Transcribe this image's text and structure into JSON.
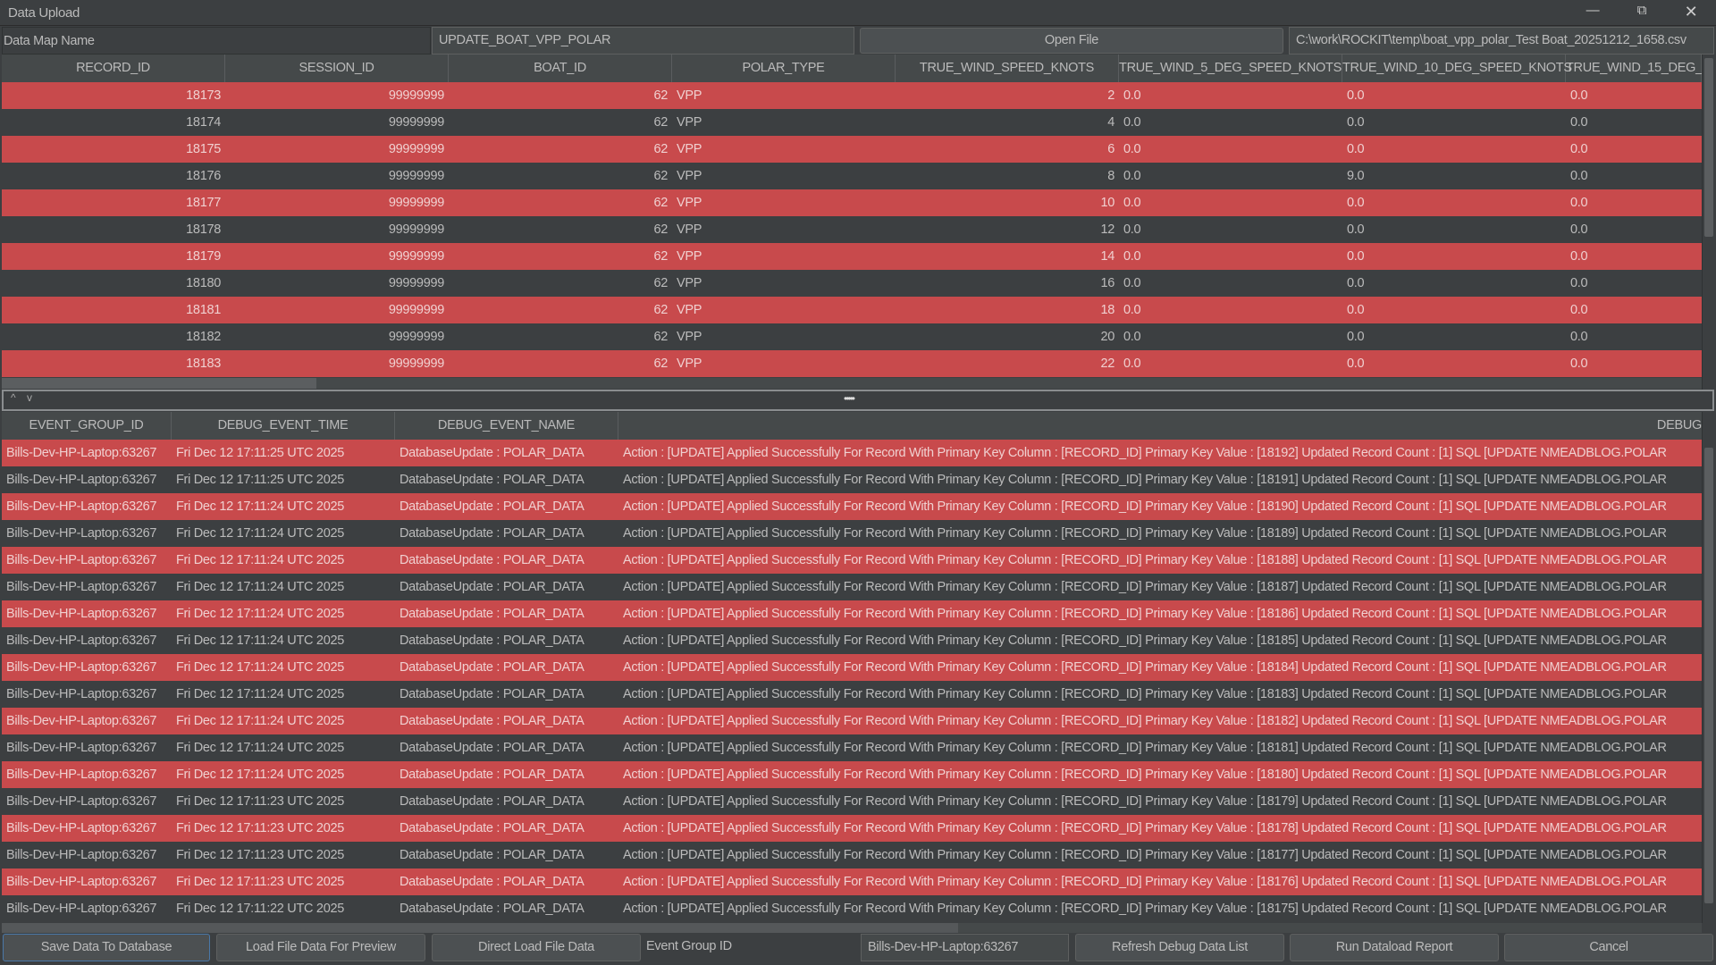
{
  "window": {
    "title": "Data Upload",
    "minimize_icon": "minimize-icon",
    "restore_icon": "restore-icon",
    "close_icon": "close-icon"
  },
  "colors": {
    "error_row": "#c84a4c",
    "normal_row": "#3c3f41",
    "background": "#3c3f41"
  },
  "data_map": {
    "label": "Data Map Name",
    "value": "UPDATE_BOAT_VPP_POLAR",
    "open_file_label": "Open File",
    "file_path": "C:\\work\\ROCKIT\\temp\\boat_vpp_polar_Test Boat_20251212_1658.csv"
  },
  "data_table": {
    "columns": [
      "RECORD_ID",
      "SESSION_ID",
      "BOAT_ID",
      "POLAR_TYPE",
      "TRUE_WIND_SPEED_KNOTS",
      "TRUE_WIND_5_DEG_SPEED_KNOTS",
      "TRUE_WIND_10_DEG_SPEED_KNOTS",
      "TRUE_WIND_15_DEG_"
    ],
    "rows": [
      [
        "18173",
        "99999999",
        "62",
        "VPP",
        "2",
        "0.0",
        "0.0",
        "0.0"
      ],
      [
        "18174",
        "99999999",
        "62",
        "VPP",
        "4",
        "0.0",
        "0.0",
        "0.0"
      ],
      [
        "18175",
        "99999999",
        "62",
        "VPP",
        "6",
        "0.0",
        "0.0",
        "0.0"
      ],
      [
        "18176",
        "99999999",
        "62",
        "VPP",
        "8",
        "0.0",
        "9.0",
        "0.0"
      ],
      [
        "18177",
        "99999999",
        "62",
        "VPP",
        "10",
        "0.0",
        "0.0",
        "0.0"
      ],
      [
        "18178",
        "99999999",
        "62",
        "VPP",
        "12",
        "0.0",
        "0.0",
        "0.0"
      ],
      [
        "18179",
        "99999999",
        "62",
        "VPP",
        "14",
        "0.0",
        "0.0",
        "0.0"
      ],
      [
        "18180",
        "99999999",
        "62",
        "VPP",
        "16",
        "0.0",
        "0.0",
        "0.0"
      ],
      [
        "18181",
        "99999999",
        "62",
        "VPP",
        "18",
        "0.0",
        "0.0",
        "0.0"
      ],
      [
        "18182",
        "99999999",
        "62",
        "VPP",
        "20",
        "0.0",
        "0.0",
        "0.0"
      ],
      [
        "18183",
        "99999999",
        "62",
        "VPP",
        "22",
        "0.0",
        "0.0",
        "0.0"
      ]
    ]
  },
  "splitter": {
    "up_icon": "^",
    "down_icon": "v",
    "grip": "•••••"
  },
  "debug_table": {
    "columns": [
      "EVENT_GROUP_ID",
      "DEBUG_EVENT_TIME",
      "DEBUG_EVENT_NAME",
      "DEBUG"
    ],
    "rows": [
      [
        "Bills-Dev-HP-Laptop:63267",
        "Fri Dec 12 17:11:25 UTC 2025",
        "DatabaseUpdate : POLAR_DATA",
        "Action : [UPDATE] Applied Successfully  For Record With Primary Key Column : [RECORD_ID] Primary Key Value : [18192] Updated Record Count : [1] SQL [UPDATE NMEADBLOG.POLAR"
      ],
      [
        "Bills-Dev-HP-Laptop:63267",
        "Fri Dec 12 17:11:25 UTC 2025",
        "DatabaseUpdate : POLAR_DATA",
        "Action : [UPDATE] Applied Successfully  For Record With Primary Key Column : [RECORD_ID] Primary Key Value : [18191] Updated Record Count : [1] SQL [UPDATE NMEADBLOG.POLAR"
      ],
      [
        "Bills-Dev-HP-Laptop:63267",
        "Fri Dec 12 17:11:24 UTC 2025",
        "DatabaseUpdate : POLAR_DATA",
        "Action : [UPDATE] Applied Successfully  For Record With Primary Key Column : [RECORD_ID] Primary Key Value : [18190] Updated Record Count : [1] SQL [UPDATE NMEADBLOG.POLAR"
      ],
      [
        "Bills-Dev-HP-Laptop:63267",
        "Fri Dec 12 17:11:24 UTC 2025",
        "DatabaseUpdate : POLAR_DATA",
        "Action : [UPDATE] Applied Successfully  For Record With Primary Key Column : [RECORD_ID] Primary Key Value : [18189] Updated Record Count : [1] SQL [UPDATE NMEADBLOG.POLAR"
      ],
      [
        "Bills-Dev-HP-Laptop:63267",
        "Fri Dec 12 17:11:24 UTC 2025",
        "DatabaseUpdate : POLAR_DATA",
        "Action : [UPDATE] Applied Successfully  For Record With Primary Key Column : [RECORD_ID] Primary Key Value : [18188] Updated Record Count : [1] SQL [UPDATE NMEADBLOG.POLAR"
      ],
      [
        "Bills-Dev-HP-Laptop:63267",
        "Fri Dec 12 17:11:24 UTC 2025",
        "DatabaseUpdate : POLAR_DATA",
        "Action : [UPDATE] Applied Successfully  For Record With Primary Key Column : [RECORD_ID] Primary Key Value : [18187] Updated Record Count : [1] SQL [UPDATE NMEADBLOG.POLAR"
      ],
      [
        "Bills-Dev-HP-Laptop:63267",
        "Fri Dec 12 17:11:24 UTC 2025",
        "DatabaseUpdate : POLAR_DATA",
        "Action : [UPDATE] Applied Successfully  For Record With Primary Key Column : [RECORD_ID] Primary Key Value : [18186] Updated Record Count : [1] SQL [UPDATE NMEADBLOG.POLAR"
      ],
      [
        "Bills-Dev-HP-Laptop:63267",
        "Fri Dec 12 17:11:24 UTC 2025",
        "DatabaseUpdate : POLAR_DATA",
        "Action : [UPDATE] Applied Successfully  For Record With Primary Key Column : [RECORD_ID] Primary Key Value : [18185] Updated Record Count : [1] SQL [UPDATE NMEADBLOG.POLAR"
      ],
      [
        "Bills-Dev-HP-Laptop:63267",
        "Fri Dec 12 17:11:24 UTC 2025",
        "DatabaseUpdate : POLAR_DATA",
        "Action : [UPDATE] Applied Successfully  For Record With Primary Key Column : [RECORD_ID] Primary Key Value : [18184] Updated Record Count : [1] SQL [UPDATE NMEADBLOG.POLAR"
      ],
      [
        "Bills-Dev-HP-Laptop:63267",
        "Fri Dec 12 17:11:24 UTC 2025",
        "DatabaseUpdate : POLAR_DATA",
        "Action : [UPDATE] Applied Successfully  For Record With Primary Key Column : [RECORD_ID] Primary Key Value : [18183] Updated Record Count : [1] SQL [UPDATE NMEADBLOG.POLAR"
      ],
      [
        "Bills-Dev-HP-Laptop:63267",
        "Fri Dec 12 17:11:24 UTC 2025",
        "DatabaseUpdate : POLAR_DATA",
        "Action : [UPDATE] Applied Successfully  For Record With Primary Key Column : [RECORD_ID] Primary Key Value : [18182] Updated Record Count : [1] SQL [UPDATE NMEADBLOG.POLAR"
      ],
      [
        "Bills-Dev-HP-Laptop:63267",
        "Fri Dec 12 17:11:24 UTC 2025",
        "DatabaseUpdate : POLAR_DATA",
        "Action : [UPDATE] Applied Successfully  For Record With Primary Key Column : [RECORD_ID] Primary Key Value : [18181] Updated Record Count : [1] SQL [UPDATE NMEADBLOG.POLAR"
      ],
      [
        "Bills-Dev-HP-Laptop:63267",
        "Fri Dec 12 17:11:24 UTC 2025",
        "DatabaseUpdate : POLAR_DATA",
        "Action : [UPDATE] Applied Successfully  For Record With Primary Key Column : [RECORD_ID] Primary Key Value : [18180] Updated Record Count : [1] SQL [UPDATE NMEADBLOG.POLAR"
      ],
      [
        "Bills-Dev-HP-Laptop:63267",
        "Fri Dec 12 17:11:23 UTC 2025",
        "DatabaseUpdate : POLAR_DATA",
        "Action : [UPDATE] Applied Successfully  For Record With Primary Key Column : [RECORD_ID] Primary Key Value : [18179] Updated Record Count : [1] SQL [UPDATE NMEADBLOG.POLAR"
      ],
      [
        "Bills-Dev-HP-Laptop:63267",
        "Fri Dec 12 17:11:23 UTC 2025",
        "DatabaseUpdate : POLAR_DATA",
        "Action : [UPDATE] Applied Successfully  For Record With Primary Key Column : [RECORD_ID] Primary Key Value : [18178] Updated Record Count : [1] SQL [UPDATE NMEADBLOG.POLAR"
      ],
      [
        "Bills-Dev-HP-Laptop:63267",
        "Fri Dec 12 17:11:23 UTC 2025",
        "DatabaseUpdate : POLAR_DATA",
        "Action : [UPDATE] Applied Successfully  For Record With Primary Key Column : [RECORD_ID] Primary Key Value : [18177] Updated Record Count : [1] SQL [UPDATE NMEADBLOG.POLAR"
      ],
      [
        "Bills-Dev-HP-Laptop:63267",
        "Fri Dec 12 17:11:23 UTC 2025",
        "DatabaseUpdate : POLAR_DATA",
        "Action : [UPDATE] Applied Successfully  For Record With Primary Key Column : [RECORD_ID] Primary Key Value : [18176] Updated Record Count : [1] SQL [UPDATE NMEADBLOG.POLAR"
      ],
      [
        "Bills-Dev-HP-Laptop:63267",
        "Fri Dec 12 17:11:22 UTC 2025",
        "DatabaseUpdate : POLAR_DATA",
        "Action : [UPDATE] Applied Successfully  For Record With Primary Key Column : [RECORD_ID] Primary Key Value : [18175] Updated Record Count : [1] SQL [UPDATE NMEADBLOG.POLAR"
      ]
    ]
  },
  "footer": {
    "save_label": "Save Data To Database",
    "load_preview_label": "Load File Data For Preview",
    "direct_load_label": "Direct Load File Data",
    "event_group_label": "Event Group ID",
    "event_group_value": "Bills-Dev-HP-Laptop:63267",
    "refresh_label": "Refresh Debug Data List",
    "report_label": "Run Dataload Report",
    "cancel_label": "Cancel"
  }
}
